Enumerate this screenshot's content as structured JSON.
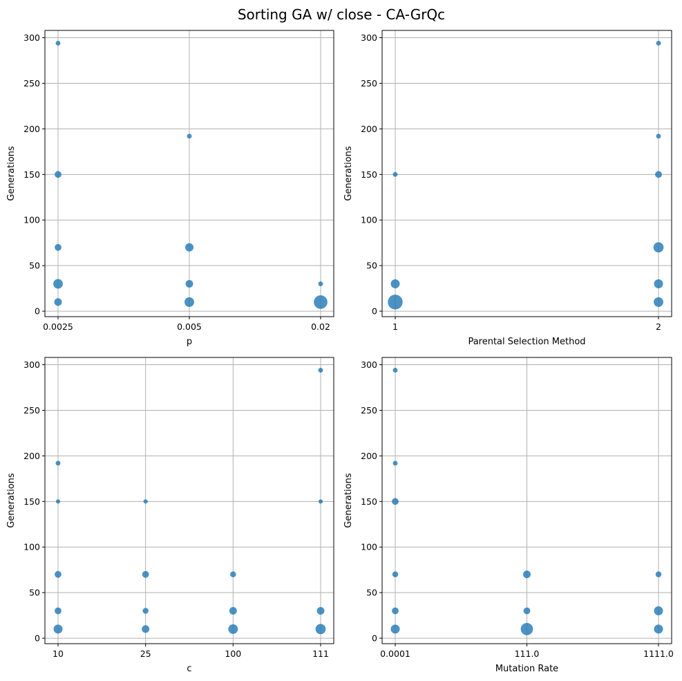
{
  "figure": {
    "title": "Sorting GA w/ close - CA-GrQc"
  },
  "style": {
    "marker_color": "#1f77b4",
    "grid_color": "#b0b0b0",
    "grid": true
  },
  "chart_data": [
    {
      "type": "scatter",
      "xlabel": "p",
      "ylabel": "Generations",
      "x_categories": [
        "0.0025",
        "0.005",
        "0.02"
      ],
      "y_ticks": [
        0,
        50,
        100,
        150,
        200,
        250,
        300
      ],
      "ylim": [
        -6,
        308
      ],
      "points": [
        {
          "x": "0.0025",
          "y": 294,
          "count": 1
        },
        {
          "x": "0.0025",
          "y": 150,
          "count": 2
        },
        {
          "x": "0.0025",
          "y": 70,
          "count": 2
        },
        {
          "x": "0.0025",
          "y": 30,
          "count": 4
        },
        {
          "x": "0.0025",
          "y": 10,
          "count": 2.5
        },
        {
          "x": "0.005",
          "y": 192,
          "count": 1
        },
        {
          "x": "0.005",
          "y": 70,
          "count": 3
        },
        {
          "x": "0.005",
          "y": 30,
          "count": 2.5
        },
        {
          "x": "0.005",
          "y": 10,
          "count": 4
        },
        {
          "x": "0.02",
          "y": 30,
          "count": 1
        },
        {
          "x": "0.02",
          "y": 10,
          "count": 8
        }
      ]
    },
    {
      "type": "scatter",
      "xlabel": "Parental Selection Method",
      "ylabel": "Generations",
      "x_categories": [
        "1",
        "2"
      ],
      "y_ticks": [
        0,
        50,
        100,
        150,
        200,
        250,
        300
      ],
      "ylim": [
        -6,
        308
      ],
      "points": [
        {
          "x": "1",
          "y": 150,
          "count": 1
        },
        {
          "x": "1",
          "y": 30,
          "count": 3.5
        },
        {
          "x": "1",
          "y": 10,
          "count": 9.5
        },
        {
          "x": "2",
          "y": 294,
          "count": 1
        },
        {
          "x": "2",
          "y": 192,
          "count": 1
        },
        {
          "x": "2",
          "y": 150,
          "count": 2
        },
        {
          "x": "2",
          "y": 70,
          "count": 4.5
        },
        {
          "x": "2",
          "y": 30,
          "count": 3.5
        },
        {
          "x": "2",
          "y": 10,
          "count": 4
        }
      ]
    },
    {
      "type": "scatter",
      "xlabel": "c",
      "ylabel": "Generations",
      "x_categories": [
        "10",
        "25",
        "100",
        "111"
      ],
      "y_ticks": [
        0,
        50,
        100,
        150,
        200,
        250,
        300
      ],
      "ylim": [
        -6,
        308
      ],
      "points": [
        {
          "x": "10",
          "y": 192,
          "count": 1
        },
        {
          "x": "10",
          "y": 150,
          "count": 0.8
        },
        {
          "x": "10",
          "y": 70,
          "count": 2
        },
        {
          "x": "10",
          "y": 30,
          "count": 2
        },
        {
          "x": "10",
          "y": 10,
          "count": 3.5
        },
        {
          "x": "25",
          "y": 150,
          "count": 0.8
        },
        {
          "x": "25",
          "y": 70,
          "count": 2
        },
        {
          "x": "25",
          "y": 30,
          "count": 1.5
        },
        {
          "x": "25",
          "y": 10,
          "count": 2.5
        },
        {
          "x": "100",
          "y": 70,
          "count": 1.5
        },
        {
          "x": "100",
          "y": 30,
          "count": 2.5
        },
        {
          "x": "100",
          "y": 10,
          "count": 4
        },
        {
          "x": "111",
          "y": 294,
          "count": 1
        },
        {
          "x": "111",
          "y": 150,
          "count": 0.8
        },
        {
          "x": "111",
          "y": 30,
          "count": 2.5
        },
        {
          "x": "111",
          "y": 10,
          "count": 4.5
        }
      ]
    },
    {
      "type": "scatter",
      "xlabel": "Mutation Rate",
      "ylabel": "Generations",
      "x_categories": [
        "0.0001",
        "111.0",
        "1111.0"
      ],
      "y_ticks": [
        0,
        50,
        100,
        150,
        200,
        250,
        300
      ],
      "ylim": [
        -6,
        308
      ],
      "points": [
        {
          "x": "0.0001",
          "y": 294,
          "count": 1
        },
        {
          "x": "0.0001",
          "y": 192,
          "count": 1
        },
        {
          "x": "0.0001",
          "y": 150,
          "count": 2
        },
        {
          "x": "0.0001",
          "y": 70,
          "count": 1.5
        },
        {
          "x": "0.0001",
          "y": 30,
          "count": 2
        },
        {
          "x": "0.0001",
          "y": 10,
          "count": 3.5
        },
        {
          "x": "111.0",
          "y": 70,
          "count": 2.5
        },
        {
          "x": "111.0",
          "y": 30,
          "count": 2
        },
        {
          "x": "111.0",
          "y": 10,
          "count": 6.5
        },
        {
          "x": "1111.0",
          "y": 70,
          "count": 1.5
        },
        {
          "x": "1111.0",
          "y": 30,
          "count": 3.5
        },
        {
          "x": "1111.0",
          "y": 10,
          "count": 3.5
        }
      ]
    }
  ]
}
